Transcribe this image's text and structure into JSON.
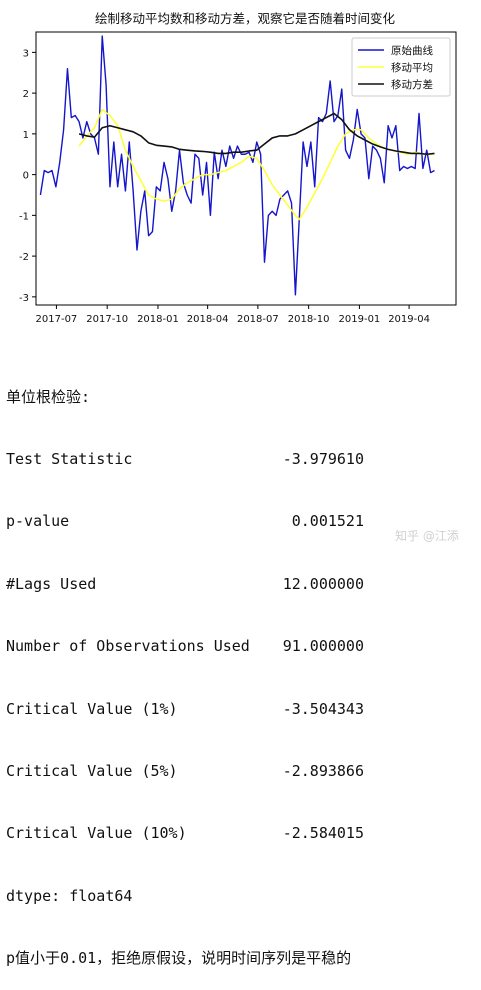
{
  "chart_data": {
    "type": "line",
    "title": "绘制移动平均数和移动方差，观察它是否随着时间变化",
    "xlabel": "",
    "ylabel": "",
    "ylim": [
      -3.2,
      3.5
    ],
    "xlim": [
      "2017-05-25",
      "2019-06-25"
    ],
    "y_ticks": [
      -3,
      -2,
      -1,
      0,
      1,
      2,
      3
    ],
    "x_ticks": [
      {
        "date": "2017-07-01",
        "label": "2017-07"
      },
      {
        "date": "2017-10-01",
        "label": "2017-10"
      },
      {
        "date": "2018-01-01",
        "label": "2018-01"
      },
      {
        "date": "2018-04-01",
        "label": "2018-04"
      },
      {
        "date": "2018-07-01",
        "label": "2018-07"
      },
      {
        "date": "2018-10-01",
        "label": "2018-10"
      },
      {
        "date": "2019-01-01",
        "label": "2019-01"
      },
      {
        "date": "2019-04-01",
        "label": "2019-04"
      }
    ],
    "legend_position": "top-right",
    "grid": false,
    "series": [
      {
        "name": "原始曲线",
        "color": "#1515cc",
        "points": [
          [
            "2017-06-02",
            -0.5
          ],
          [
            "2017-06-09",
            0.1
          ],
          [
            "2017-06-16",
            0.05
          ],
          [
            "2017-06-23",
            0.1
          ],
          [
            "2017-06-30",
            -0.3
          ],
          [
            "2017-07-07",
            0.3
          ],
          [
            "2017-07-14",
            1.1
          ],
          [
            "2017-07-21",
            2.6
          ],
          [
            "2017-07-28",
            1.4
          ],
          [
            "2017-08-04",
            1.45
          ],
          [
            "2017-08-11",
            1.3
          ],
          [
            "2017-08-18",
            0.9
          ],
          [
            "2017-08-25",
            1.3
          ],
          [
            "2017-09-01",
            1.0
          ],
          [
            "2017-09-08",
            0.9
          ],
          [
            "2017-09-15",
            0.5
          ],
          [
            "2017-09-22",
            3.4
          ],
          [
            "2017-09-29",
            2.2
          ],
          [
            "2017-10-06",
            -0.3
          ],
          [
            "2017-10-13",
            0.8
          ],
          [
            "2017-10-20",
            -0.3
          ],
          [
            "2017-10-27",
            0.5
          ],
          [
            "2017-11-03",
            -0.4
          ],
          [
            "2017-11-10",
            0.8
          ],
          [
            "2017-11-17",
            -0.4
          ],
          [
            "2017-11-24",
            -1.85
          ],
          [
            "2017-12-01",
            -0.9
          ],
          [
            "2017-12-08",
            -0.4
          ],
          [
            "2017-12-15",
            -1.5
          ],
          [
            "2017-12-22",
            -1.4
          ],
          [
            "2017-12-29",
            -0.3
          ],
          [
            "2018-01-05",
            -0.4
          ],
          [
            "2018-01-12",
            0.3
          ],
          [
            "2018-01-19",
            -0.1
          ],
          [
            "2018-01-26",
            -0.9
          ],
          [
            "2018-02-02",
            -0.4
          ],
          [
            "2018-02-09",
            0.6
          ],
          [
            "2018-02-16",
            -0.2
          ],
          [
            "2018-02-23",
            -0.5
          ],
          [
            "2018-03-02",
            -0.7
          ],
          [
            "2018-03-09",
            0.5
          ],
          [
            "2018-03-16",
            0.4
          ],
          [
            "2018-03-23",
            -0.5
          ],
          [
            "2018-03-30",
            0.3
          ],
          [
            "2018-04-06",
            -1.0
          ],
          [
            "2018-04-13",
            0.55
          ],
          [
            "2018-04-20",
            -0.1
          ],
          [
            "2018-04-27",
            0.6
          ],
          [
            "2018-05-04",
            0.2
          ],
          [
            "2018-05-11",
            0.7
          ],
          [
            "2018-05-18",
            0.4
          ],
          [
            "2018-05-25",
            0.7
          ],
          [
            "2018-06-01",
            0.5
          ],
          [
            "2018-06-08",
            0.5
          ],
          [
            "2018-06-15",
            0.55
          ],
          [
            "2018-06-22",
            0.3
          ],
          [
            "2018-06-29",
            0.8
          ],
          [
            "2018-07-06",
            0.5
          ],
          [
            "2018-07-13",
            -2.15
          ],
          [
            "2018-07-20",
            -1.0
          ],
          [
            "2018-07-27",
            -0.9
          ],
          [
            "2018-08-03",
            -1.0
          ],
          [
            "2018-08-10",
            -0.6
          ],
          [
            "2018-08-17",
            -0.5
          ],
          [
            "2018-08-24",
            -0.4
          ],
          [
            "2018-08-31",
            -0.7
          ],
          [
            "2018-09-07",
            -2.95
          ],
          [
            "2018-09-14",
            -1.1
          ],
          [
            "2018-09-21",
            0.8
          ],
          [
            "2018-09-28",
            0.2
          ],
          [
            "2018-10-05",
            0.8
          ],
          [
            "2018-10-12",
            -0.3
          ],
          [
            "2018-10-19",
            1.4
          ],
          [
            "2018-10-26",
            1.3
          ],
          [
            "2018-11-02",
            1.5
          ],
          [
            "2018-11-09",
            2.3
          ],
          [
            "2018-11-16",
            1.3
          ],
          [
            "2018-11-23",
            1.45
          ],
          [
            "2018-11-30",
            2.1
          ],
          [
            "2018-12-07",
            0.6
          ],
          [
            "2018-12-14",
            0.4
          ],
          [
            "2018-12-21",
            0.85
          ],
          [
            "2018-12-28",
            1.6
          ],
          [
            "2019-01-04",
            1.0
          ],
          [
            "2019-01-11",
            0.9
          ],
          [
            "2019-01-18",
            -0.1
          ],
          [
            "2019-01-25",
            0.7
          ],
          [
            "2019-02-01",
            0.6
          ],
          [
            "2019-02-08",
            0.4
          ],
          [
            "2019-02-15",
            -0.2
          ],
          [
            "2019-02-22",
            1.2
          ],
          [
            "2019-03-01",
            0.9
          ],
          [
            "2019-03-08",
            1.2
          ],
          [
            "2019-03-15",
            0.1
          ],
          [
            "2019-03-22",
            0.2
          ],
          [
            "2019-03-29",
            0.15
          ],
          [
            "2019-04-05",
            0.2
          ],
          [
            "2019-04-12",
            0.15
          ],
          [
            "2019-04-19",
            1.5
          ],
          [
            "2019-04-26",
            0.15
          ],
          [
            "2019-05-03",
            0.6
          ],
          [
            "2019-05-10",
            0.05
          ],
          [
            "2019-05-17",
            0.1
          ]
        ]
      },
      {
        "name": "移动平均",
        "color": "#ffff33",
        "points": [
          [
            "2017-08-11",
            0.7
          ],
          [
            "2017-08-25",
            0.95
          ],
          [
            "2017-09-08",
            1.15
          ],
          [
            "2017-09-22",
            1.6
          ],
          [
            "2017-10-06",
            1.45
          ],
          [
            "2017-10-20",
            1.2
          ],
          [
            "2017-11-03",
            0.6
          ],
          [
            "2017-11-17",
            0.2
          ],
          [
            "2017-12-01",
            -0.15
          ],
          [
            "2017-12-15",
            -0.5
          ],
          [
            "2017-12-29",
            -0.6
          ],
          [
            "2018-01-12",
            -0.65
          ],
          [
            "2018-01-26",
            -0.6
          ],
          [
            "2018-02-09",
            -0.35
          ],
          [
            "2018-02-23",
            -0.2
          ],
          [
            "2018-03-09",
            -0.1
          ],
          [
            "2018-03-23",
            0.0
          ],
          [
            "2018-04-06",
            0.0
          ],
          [
            "2018-04-20",
            0.05
          ],
          [
            "2018-05-04",
            0.1
          ],
          [
            "2018-05-18",
            0.2
          ],
          [
            "2018-06-01",
            0.3
          ],
          [
            "2018-06-15",
            0.45
          ],
          [
            "2018-06-29",
            0.4
          ],
          [
            "2018-07-13",
            0.1
          ],
          [
            "2018-07-27",
            -0.25
          ],
          [
            "2018-08-10",
            -0.5
          ],
          [
            "2018-08-24",
            -0.75
          ],
          [
            "2018-09-07",
            -1.0
          ],
          [
            "2018-09-14",
            -1.1
          ],
          [
            "2018-09-28",
            -0.8
          ],
          [
            "2018-10-12",
            -0.45
          ],
          [
            "2018-10-26",
            -0.1
          ],
          [
            "2018-11-09",
            0.3
          ],
          [
            "2018-11-23",
            0.7
          ],
          [
            "2018-12-07",
            1.0
          ],
          [
            "2018-12-21",
            1.1
          ],
          [
            "2019-01-04",
            1.1
          ],
          [
            "2019-01-18",
            0.9
          ],
          [
            "2019-02-01",
            0.75
          ],
          [
            "2019-02-15",
            0.65
          ],
          [
            "2019-03-01",
            0.6
          ],
          [
            "2019-03-15",
            0.55
          ],
          [
            "2019-03-29",
            0.5
          ],
          [
            "2019-04-12",
            0.55
          ],
          [
            "2019-04-26",
            0.5
          ],
          [
            "2019-05-10",
            0.5
          ],
          [
            "2019-05-17",
            0.5
          ]
        ]
      },
      {
        "name": "移动方差",
        "color": "#111111",
        "points": [
          [
            "2017-08-11",
            1.0
          ],
          [
            "2017-08-25",
            0.95
          ],
          [
            "2017-09-08",
            0.92
          ],
          [
            "2017-09-22",
            1.15
          ],
          [
            "2017-10-06",
            1.2
          ],
          [
            "2017-10-20",
            1.15
          ],
          [
            "2017-11-03",
            1.1
          ],
          [
            "2017-11-17",
            1.05
          ],
          [
            "2017-12-01",
            0.95
          ],
          [
            "2017-12-15",
            0.78
          ],
          [
            "2017-12-29",
            0.72
          ],
          [
            "2018-01-12",
            0.7
          ],
          [
            "2018-01-26",
            0.68
          ],
          [
            "2018-02-09",
            0.62
          ],
          [
            "2018-02-23",
            0.6
          ],
          [
            "2018-03-09",
            0.58
          ],
          [
            "2018-03-23",
            0.57
          ],
          [
            "2018-04-06",
            0.55
          ],
          [
            "2018-04-20",
            0.52
          ],
          [
            "2018-05-04",
            0.52
          ],
          [
            "2018-05-18",
            0.55
          ],
          [
            "2018-06-01",
            0.55
          ],
          [
            "2018-06-15",
            0.58
          ],
          [
            "2018-06-29",
            0.6
          ],
          [
            "2018-07-13",
            0.75
          ],
          [
            "2018-07-27",
            0.9
          ],
          [
            "2018-08-10",
            0.95
          ],
          [
            "2018-08-24",
            0.95
          ],
          [
            "2018-09-07",
            1.0
          ],
          [
            "2018-09-21",
            1.1
          ],
          [
            "2018-10-05",
            1.2
          ],
          [
            "2018-10-19",
            1.3
          ],
          [
            "2018-11-02",
            1.4
          ],
          [
            "2018-11-16",
            1.5
          ],
          [
            "2018-11-30",
            1.35
          ],
          [
            "2018-12-14",
            1.1
          ],
          [
            "2018-12-28",
            0.95
          ],
          [
            "2019-01-11",
            0.85
          ],
          [
            "2019-01-25",
            0.75
          ],
          [
            "2019-02-08",
            0.68
          ],
          [
            "2019-02-22",
            0.62
          ],
          [
            "2019-03-08",
            0.58
          ],
          [
            "2019-03-22",
            0.55
          ],
          [
            "2019-04-05",
            0.52
          ],
          [
            "2019-04-19",
            0.52
          ],
          [
            "2019-05-03",
            0.5
          ],
          [
            "2019-05-17",
            0.52
          ]
        ]
      }
    ]
  },
  "output": {
    "heading": "单位根检验:",
    "rows": [
      {
        "label": "Test Statistic",
        "value": "-3.979610"
      },
      {
        "label": "p-value",
        "value": "0.001521"
      },
      {
        "label": "#Lags Used",
        "value": "12.000000"
      },
      {
        "label": "Number of Observations Used",
        "value": "91.000000"
      },
      {
        "label": "Critical Value (1%)",
        "value": "-3.504343"
      },
      {
        "label": "Critical Value (5%)",
        "value": "-2.893866"
      },
      {
        "label": "Critical Value (10%)",
        "value": "-2.584015"
      }
    ],
    "dtype": "dtype: float64",
    "conclusion": "p值小于0.01，拒绝原假设，说明时间序列是平稳的"
  },
  "watermark": "知乎 @江添"
}
